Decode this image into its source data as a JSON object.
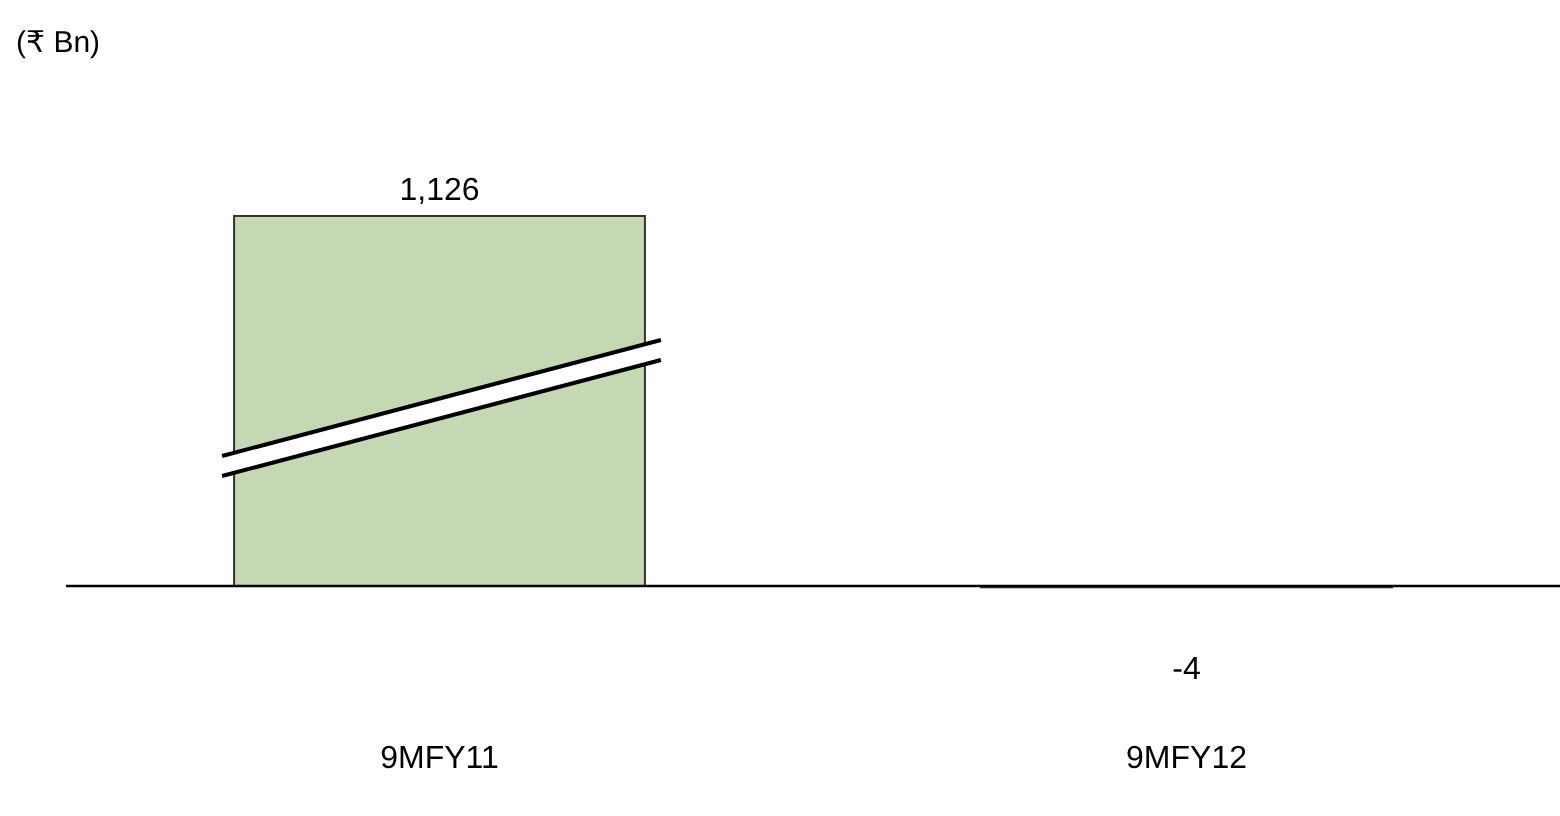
{
  "chart_data": {
    "type": "bar",
    "title": "(₹ Bn)",
    "categories": [
      "9MFY11",
      "9MFY12"
    ],
    "values": [
      1126,
      -4
    ],
    "color": "#c4d9b3",
    "data_labels": true,
    "value_labels": [
      "1,126",
      "-4"
    ]
  }
}
